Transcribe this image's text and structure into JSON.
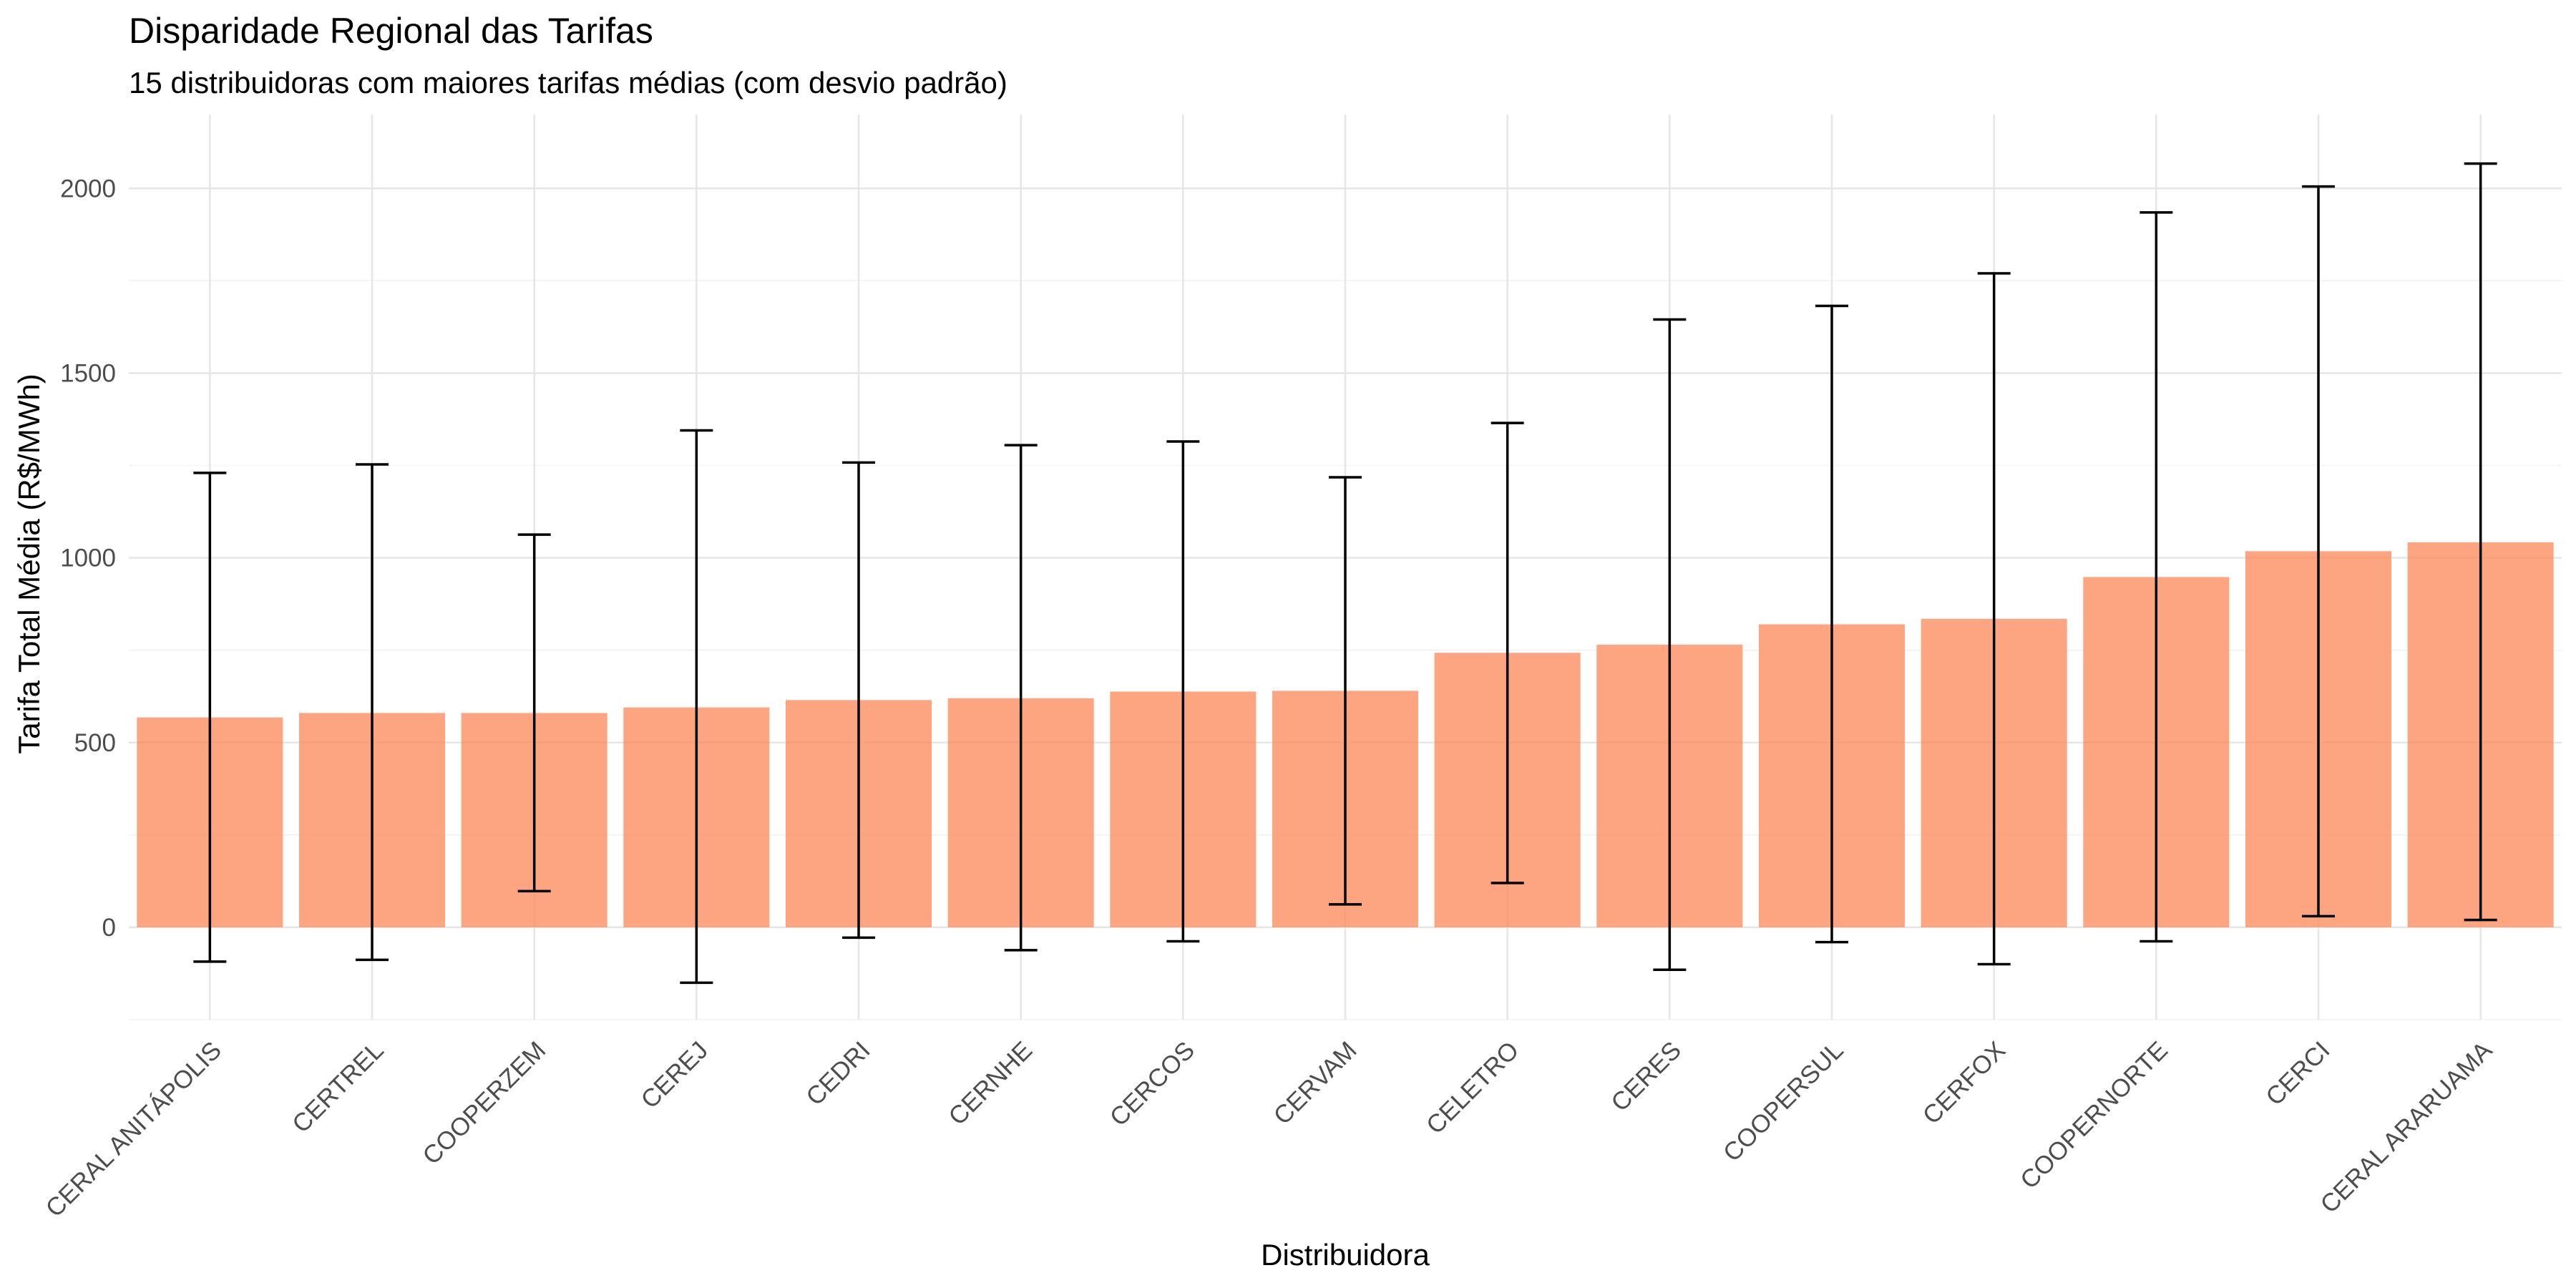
{
  "chart_data": {
    "type": "bar",
    "title": "Disparidade Regional das Tarifas",
    "subtitle": "15 distribuidoras com maiores tarifas médias (com desvio padrão)",
    "xlabel": "Distribuidora",
    "ylabel": "Tarifa Total Média (R$/MWh)",
    "categories": [
      "CERAL ANITÁPOLIS",
      "CERTREL",
      "COOPERZEM",
      "CEREJ",
      "CEDRI",
      "CERNHE",
      "CERCOS",
      "CERVAM",
      "CELETRO",
      "CERES",
      "COOPERSUL",
      "CERFOX",
      "COOPERNORTE",
      "CERCI",
      "CERAL ARARUAMA"
    ],
    "values": [
      568,
      580,
      580,
      595,
      615,
      620,
      638,
      640,
      743,
      765,
      820,
      835,
      948,
      1018,
      1042
    ],
    "error_low": [
      -93,
      -88,
      98,
      -150,
      -28,
      -62,
      -38,
      62,
      120,
      -115,
      -40,
      -100,
      -38,
      30,
      20
    ],
    "error_high": [
      1230,
      1253,
      1063,
      1345,
      1258,
      1305,
      1315,
      1218,
      1365,
      1645,
      1682,
      1770,
      1935,
      2005,
      2067
    ],
    "y_ticks": [
      0,
      500,
      1000,
      1500,
      2000
    ],
    "ylim": [
      -250,
      2200
    ],
    "grid": true,
    "legend": "none",
    "bar_color": "#FC8D62",
    "error_bar_color": "#000000"
  }
}
